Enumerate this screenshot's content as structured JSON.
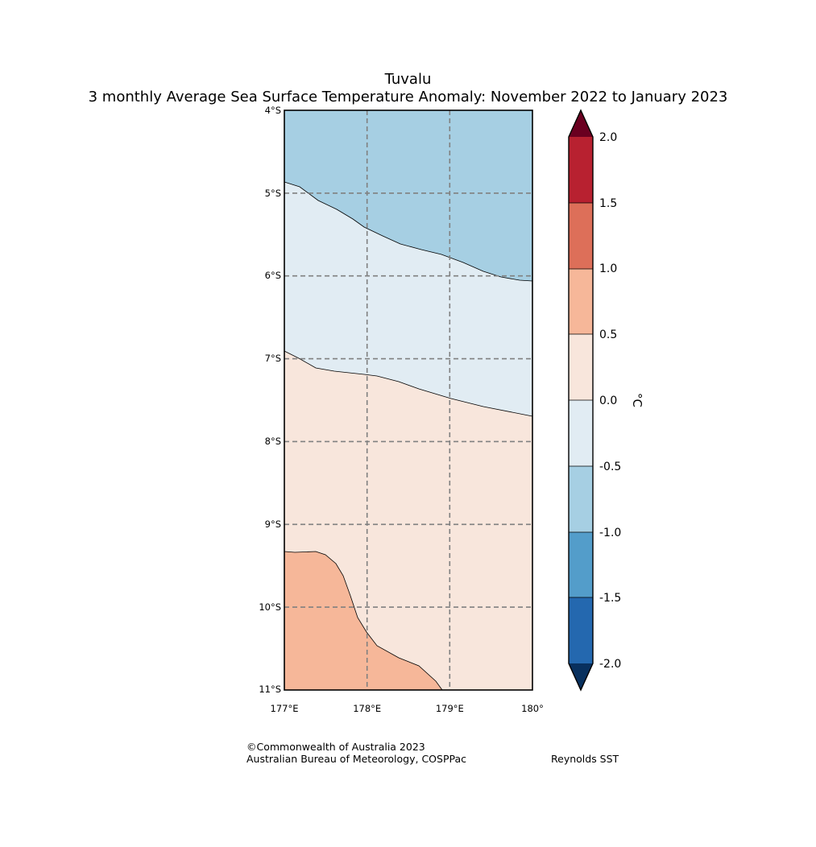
{
  "map": {
    "title": "Tuvalu",
    "subtitle": "3 monthly Average Sea Surface Temperature Anomaly: November 2022 to January 2023",
    "lat_labels": [
      "4°S",
      "5°S",
      "6°S",
      "7°S",
      "8°S",
      "9°S",
      "10°S",
      "11°S"
    ],
    "lon_labels": [
      "177°E",
      "178°E",
      "179°E",
      "180°"
    ],
    "extent": {
      "lon_min": 177,
      "lon_max": 180,
      "lat_min": -11,
      "lat_max": -4
    },
    "regions": [
      {
        "name": "anomaly -1.0 to -0.5",
        "color": "#a6cfe3"
      },
      {
        "name": "anomaly -0.5 to 0.0",
        "color": "#e1ecf3"
      },
      {
        "name": "anomaly 0.0 to 0.5",
        "color": "#f8e6dc"
      },
      {
        "name": "anomaly 0.5 to 1.0",
        "color": "#f6b799"
      }
    ]
  },
  "colorbar": {
    "unit": "°C",
    "tick_labels": [
      "2.0",
      "1.5",
      "1.0",
      "0.5",
      "0.0",
      "-0.5",
      "-1.0",
      "-1.5",
      "-2.0"
    ],
    "bins": [
      {
        "range": "1.5 to 2.0",
        "color": "#b82130"
      },
      {
        "range": "1.0 to 1.5",
        "color": "#dd6f59"
      },
      {
        "range": "0.5 to 1.0",
        "color": "#f6b799"
      },
      {
        "range": "0.0 to 0.5",
        "color": "#f8e6dc"
      },
      {
        "range": "-0.5 to 0.0",
        "color": "#e1ecf3"
      },
      {
        "range": "-1.0 to -0.5",
        "color": "#a6cfe3"
      },
      {
        "range": "-1.5 to -1.0",
        "color": "#539dca"
      },
      {
        "range": "-2.0 to -1.5",
        "color": "#2468af"
      }
    ],
    "extend_high_color": "#6a0020",
    "extend_low_color": "#08305e"
  },
  "credits": {
    "copyright": "©Commonwealth of Australia 2023",
    "agency": "Australian Bureau of Meteorology, COSPPac",
    "source": "Reynolds SST"
  }
}
